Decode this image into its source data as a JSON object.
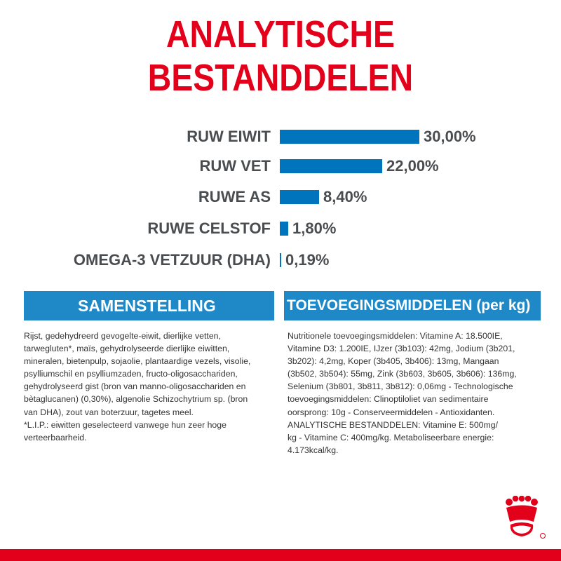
{
  "title": "ANALYTISCHE BESTANDDELEN",
  "colors": {
    "brand_red": "#e2001a",
    "bar_blue": "#0075be",
    "section_blue": "#1f88c6",
    "text_gray": "#4a4d50"
  },
  "analysis": [
    {
      "label": "RUW EIWIT",
      "value": "30,00%",
      "percent": 30.0
    },
    {
      "label": "RUW VET",
      "value": "22,00%",
      "percent": 22.0
    },
    {
      "label": "RUWE AS",
      "value": "8,40%",
      "percent": 8.4
    },
    {
      "label": "RUWE CELSTOF",
      "value": "1,80%",
      "percent": 1.8
    },
    {
      "label": "OMEGA-3 VETZUUR (DHA)",
      "value": "0,19%",
      "percent": 0.19
    }
  ],
  "composition": {
    "heading": "SAMENSTELLING",
    "text": "Rijst, gedehydreerd gevogelte-eiwit, dierlijke vetten,\ntarwegluten*, maïs, gehydrolyseerde dierlijke eiwitten,\nmineralen, bietenpulp, sojaolie, plantaardige vezels, visolie,\npsylliumschil en psylliumzaden, fructo-oligosacchariden,\ngehydrolyseerd gist (bron van manno-oligosacchariden en\nbètaglucanen) (0,30%), algenolie Schizochytrium sp. (bron\nvan DHA), zout van boterzuur, tagetes meel.\n*L.I.P.: eiwitten geselecteerd vanwege hun zeer hoge\nverteerbaarheid."
  },
  "additives": {
    "heading": "TOEVOEGINGSMIDDELEN (per kg)",
    "text": "Nutritionele toevoegingsmiddelen: Vitamine A: 18.500IE,\nVitamine D3: 1.200IE, IJzer (3b103): 42mg, Jodium (3b201,\n3b202): 4,2mg, Koper (3b405, 3b406): 13mg, Mangaan\n(3b502, 3b504): 55mg, Zink (3b603, 3b605, 3b606): 136mg,\nSelenium (3b801, 3b811, 3b812): 0,06mg - Technologische\ntoevoegingsmiddelen: Clinoptiloliet van sedimentaire\noorsprong: 10g - Conserveermiddelen - Antioxidanten.\nANALYTISCHE BESTANDDELEN: Vitamine E: 500mg/\nkg - Vitamine C: 400mg/kg. Metaboliseerbare energie:\n4.173kcal/kg."
  },
  "logo_icon": "royal-canin-crown-icon"
}
